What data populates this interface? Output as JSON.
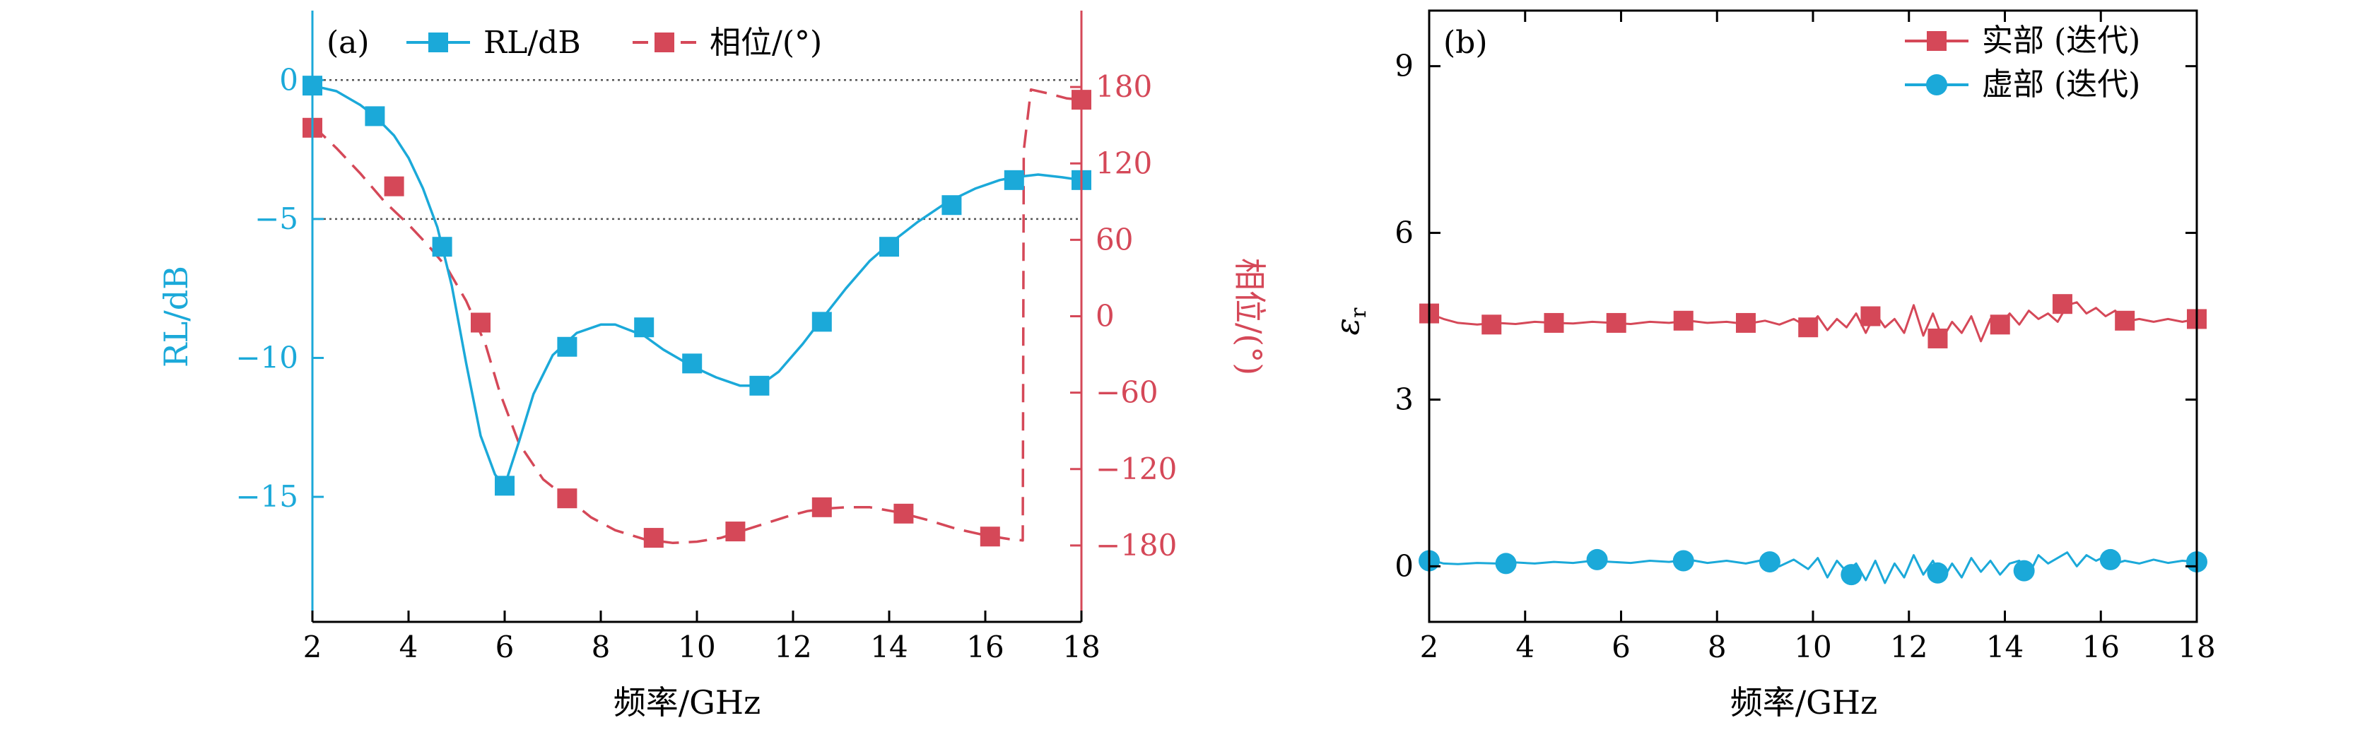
{
  "colors": {
    "rl": "#1BA9D9",
    "phase": "#D54858",
    "real": "#D54858",
    "imag": "#1BA9D9",
    "axis": "#000000",
    "refline": "#555555"
  },
  "chart_data": [
    {
      "panel": "(a)",
      "type": "line",
      "xlabel": "频率/GHz",
      "ylabel": "RL/dB",
      "ylabel_right": "相位/(°)",
      "xlim": [
        2,
        18
      ],
      "ylim": [
        -19.5,
        2.5
      ],
      "ylim_right": [
        -240,
        240
      ],
      "xticks": [
        2,
        4,
        6,
        8,
        10,
        12,
        14,
        16,
        18
      ],
      "xtick_labels": [
        "2",
        "4",
        "6",
        "8",
        "10",
        "12",
        "14",
        "16",
        "18"
      ],
      "yticks": [
        0,
        -5,
        -10,
        -15
      ],
      "ytick_labels": [
        "0",
        "−5",
        "−10",
        "−15"
      ],
      "yticks_right": [
        180,
        120,
        60,
        0,
        -60,
        -120,
        -180
      ],
      "ytick_labels_right": [
        "180",
        "120",
        "60",
        "0",
        "−60",
        "−120",
        "−180"
      ],
      "reference_lines_y": [
        0,
        -5
      ],
      "legend_placement": "top-left",
      "series": [
        {
          "name": "RL/dB",
          "axis": "left",
          "style": "solid",
          "marker": "square",
          "curve": {
            "x": [
              2.0,
              2.5,
              3.0,
              3.3,
              3.7,
              4.0,
              4.3,
              4.6,
              4.9,
              5.2,
              5.5,
              5.8,
              6.0,
              6.3,
              6.6,
              7.0,
              7.5,
              8.0,
              8.3,
              8.9,
              9.3,
              9.9,
              10.4,
              10.9,
              11.3,
              11.7,
              12.2,
              12.6,
              13.1,
              13.6,
              14.0,
              14.6,
              15.2,
              15.8,
              16.3,
              16.6,
              17.1,
              17.6,
              18.0
            ],
            "y": [
              -0.2,
              -0.4,
              -0.9,
              -1.3,
              -2.0,
              -2.8,
              -3.9,
              -5.3,
              -7.4,
              -10.2,
              -12.8,
              -14.2,
              -14.6,
              -13.0,
              -11.3,
              -9.9,
              -9.1,
              -8.8,
              -8.8,
              -9.2,
              -9.7,
              -10.3,
              -10.7,
              -11.0,
              -11.0,
              -10.5,
              -9.5,
              -8.6,
              -7.5,
              -6.5,
              -5.9,
              -5.1,
              -4.4,
              -3.9,
              -3.6,
              -3.5,
              -3.4,
              -3.5,
              -3.6
            ]
          },
          "markers": {
            "x": [
              2.0,
              3.3,
              4.7,
              6.0,
              7.3,
              8.9,
              9.9,
              11.3,
              12.6,
              14.0,
              15.3,
              16.6,
              18.0
            ],
            "y": [
              -0.2,
              -1.3,
              -6.0,
              -14.6,
              -9.6,
              -8.9,
              -10.2,
              -11.0,
              -8.7,
              -6.0,
              -4.5,
              -3.6,
              -3.6
            ]
          }
        },
        {
          "name": "相位/(°)",
          "axis": "right",
          "style": "dashed",
          "marker": "square",
          "curve": {
            "x": [
              2.0,
              2.5,
              3.0,
              3.5,
              4.0,
              4.4,
              4.8,
              5.2,
              5.6,
              5.9,
              6.3,
              6.8,
              7.3,
              7.8,
              8.3,
              8.9,
              9.5,
              10.0,
              10.5,
              10.9,
              11.4,
              11.9,
              12.3,
              12.7,
              13.1,
              13.6,
              14.2,
              14.8,
              15.4,
              16.0,
              16.5,
              16.78,
              16.8,
              16.95,
              17.3,
              17.7,
              18.0
            ],
            "y": [
              150,
              132,
              112,
              90,
              72,
              56,
              38,
              12,
              -22,
              -60,
              -100,
              -128,
              -143,
              -158,
              -168,
              -175,
              -178,
              -177,
              -174,
              -169,
              -163,
              -157,
              -153,
              -151,
              -150,
              -150,
              -154,
              -160,
              -167,
              -172,
              -175,
              -176,
              130,
              178,
              175,
              171,
              170
            ]
          },
          "markers": {
            "x": [
              2.0,
              3.7,
              5.5,
              7.3,
              9.1,
              10.8,
              12.6,
              14.3,
              16.1,
              18.0
            ],
            "y": [
              148,
              102,
              -5,
              -143,
              -174,
              -169,
              -150,
              -155,
              -173,
              170
            ]
          }
        }
      ]
    },
    {
      "panel": "(b)",
      "type": "line",
      "xlabel": "频率/GHz",
      "ylabel": "εr",
      "xlim": [
        2,
        18
      ],
      "ylim": [
        -1,
        10
      ],
      "xticks": [
        2,
        4,
        6,
        8,
        10,
        12,
        14,
        16,
        18
      ],
      "xtick_labels": [
        "2",
        "4",
        "6",
        "8",
        "10",
        "12",
        "14",
        "16",
        "18"
      ],
      "yticks": [
        0,
        3,
        6,
        9
      ],
      "ytick_labels": [
        "0",
        "3",
        "6",
        "9"
      ],
      "legend_placement": "top-right",
      "series": [
        {
          "name": "实部 (迭代)",
          "style": "solid",
          "marker": "square",
          "curve": {
            "x": [
              2.0,
              2.3,
              2.6,
              3.0,
              3.4,
              3.8,
              4.2,
              4.6,
              5.0,
              5.4,
              5.8,
              6.2,
              6.6,
              7.0,
              7.4,
              7.8,
              8.2,
              8.6,
              9.0,
              9.3,
              9.6,
              9.9,
              10.1,
              10.3,
              10.5,
              10.7,
              10.9,
              11.1,
              11.3,
              11.5,
              11.7,
              11.9,
              12.1,
              12.3,
              12.5,
              12.7,
              12.9,
              13.1,
              13.3,
              13.5,
              13.7,
              13.9,
              14.1,
              14.3,
              14.5,
              14.7,
              14.9,
              15.1,
              15.3,
              15.5,
              15.7,
              15.9,
              16.1,
              16.3,
              16.5,
              16.8,
              17.1,
              17.4,
              17.7,
              18.0
            ],
            "y": [
              4.55,
              4.45,
              4.38,
              4.35,
              4.38,
              4.36,
              4.4,
              4.38,
              4.37,
              4.4,
              4.38,
              4.36,
              4.4,
              4.38,
              4.42,
              4.38,
              4.4,
              4.36,
              4.42,
              4.35,
              4.45,
              4.3,
              4.5,
              4.25,
              4.45,
              4.3,
              4.55,
              4.2,
              4.55,
              4.3,
              4.45,
              4.2,
              4.7,
              4.15,
              4.55,
              4.1,
              4.4,
              4.2,
              4.5,
              4.05,
              4.45,
              4.35,
              4.55,
              4.35,
              4.6,
              4.45,
              4.55,
              4.4,
              4.7,
              4.75,
              4.55,
              4.65,
              4.5,
              4.6,
              4.4,
              4.45,
              4.4,
              4.45,
              4.4,
              4.45
            ]
          },
          "markers": {
            "x": [
              2.0,
              3.3,
              4.6,
              5.9,
              7.3,
              8.6,
              9.9,
              11.2,
              12.6,
              13.9,
              15.2,
              16.5,
              18.0
            ],
            "y": [
              4.55,
              4.35,
              4.38,
              4.38,
              4.42,
              4.38,
              4.3,
              4.5,
              4.1,
              4.35,
              4.72,
              4.42,
              4.45
            ]
          }
        },
        {
          "name": "虚部 (迭代)",
          "style": "solid",
          "marker": "circle",
          "curve": {
            "x": [
              2.0,
              2.3,
              2.6,
              3.0,
              3.4,
              3.8,
              4.2,
              4.6,
              5.0,
              5.4,
              5.8,
              6.2,
              6.6,
              7.0,
              7.4,
              7.8,
              8.2,
              8.6,
              9.0,
              9.3,
              9.6,
              9.9,
              10.1,
              10.3,
              10.5,
              10.7,
              10.9,
              11.1,
              11.3,
              11.5,
              11.7,
              11.9,
              12.1,
              12.3,
              12.5,
              12.7,
              12.9,
              13.1,
              13.3,
              13.5,
              13.7,
              13.9,
              14.1,
              14.3,
              14.5,
              14.7,
              14.9,
              15.1,
              15.3,
              15.5,
              15.7,
              15.9,
              16.1,
              16.3,
              16.5,
              16.8,
              17.1,
              17.4,
              17.7,
              18.0
            ],
            "y": [
              0.12,
              0.05,
              0.04,
              0.06,
              0.05,
              0.07,
              0.05,
              0.08,
              0.06,
              0.1,
              0.08,
              0.06,
              0.1,
              0.08,
              0.12,
              0.06,
              0.1,
              0.05,
              0.12,
              0.0,
              0.12,
              -0.05,
              0.15,
              -0.2,
              0.1,
              -0.1,
              0.05,
              -0.25,
              0.1,
              -0.3,
              0.05,
              -0.2,
              0.2,
              -0.15,
              0.1,
              -0.25,
              0.05,
              -0.2,
              0.15,
              -0.1,
              0.1,
              -0.15,
              0.05,
              0.1,
              -0.15,
              0.2,
              0.05,
              0.15,
              0.25,
              0.0,
              0.2,
              0.1,
              0.18,
              0.05,
              0.1,
              0.05,
              0.12,
              0.06,
              0.1,
              0.08
            ]
          },
          "markers": {
            "x": [
              2.0,
              3.6,
              5.5,
              7.3,
              9.1,
              10.8,
              12.6,
              14.4,
              16.2,
              18.0
            ],
            "y": [
              0.1,
              0.05,
              0.12,
              0.1,
              0.08,
              -0.15,
              -0.12,
              -0.08,
              0.12,
              0.08
            ]
          }
        }
      ]
    }
  ]
}
